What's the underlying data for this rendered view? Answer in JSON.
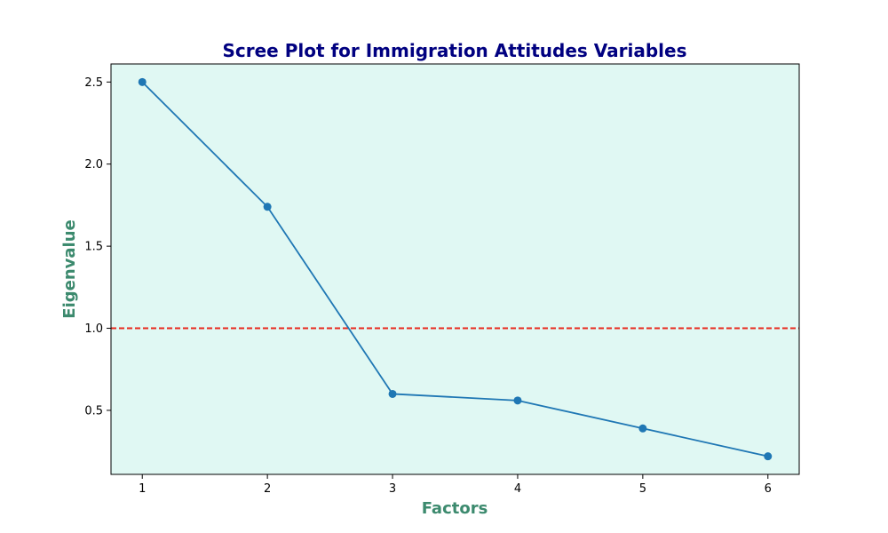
{
  "chart_data": {
    "type": "line",
    "title": "Scree Plot for Immigration Attitudes Variables",
    "xlabel": "Factors",
    "ylabel": "Eigenvalue",
    "x": [
      1,
      2,
      3,
      4,
      5,
      6
    ],
    "series": [
      {
        "values": [
          2.5,
          1.74,
          0.6,
          0.56,
          0.39,
          0.22
        ]
      }
    ],
    "reference_line": {
      "y": 1.0,
      "style": "dashed",
      "color": "#e8291c"
    },
    "xlim": [
      0.75,
      6.25
    ],
    "ylim": [
      0.11,
      2.61
    ],
    "xticks": [
      1,
      2,
      3,
      4,
      5,
      6
    ],
    "yticks": [
      0.5,
      1.0,
      1.5,
      2.0,
      2.5
    ],
    "xtick_labels": [
      "1",
      "2",
      "3",
      "4",
      "5",
      "6"
    ],
    "ytick_labels": [
      "0.5",
      "1.0",
      "1.5",
      "2.0",
      "2.5"
    ],
    "grid": false,
    "colors": {
      "line": "#1f77b4",
      "plot_background": "#e0f8f3",
      "title": "#000080",
      "axis_label": "#3c8a6e"
    }
  }
}
